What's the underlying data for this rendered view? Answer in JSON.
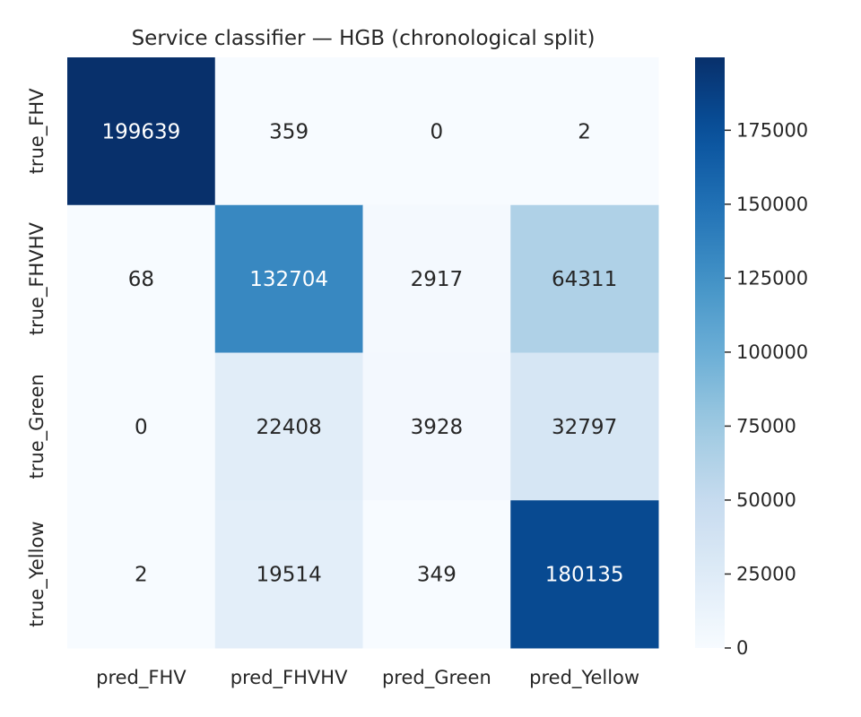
{
  "chart_data": {
    "type": "heatmap",
    "title": "Service classifier — HGB (chronological split)",
    "x_categories": [
      "pred_FHV",
      "pred_FHVHV",
      "pred_Green",
      "pred_Yellow"
    ],
    "y_categories": [
      "true_FHV",
      "true_FHVHV",
      "true_Green",
      "true_Yellow"
    ],
    "values": [
      [
        199639,
        359,
        0,
        2
      ],
      [
        68,
        132704,
        2917,
        64311
      ],
      [
        0,
        22408,
        3928,
        32797
      ],
      [
        2,
        19514,
        349,
        180135
      ]
    ],
    "colorscale": "Blues",
    "colorbar": {
      "min": 0,
      "max": 199639,
      "ticks": [
        0,
        25000,
        50000,
        75000,
        100000,
        125000,
        150000,
        175000
      ]
    }
  }
}
